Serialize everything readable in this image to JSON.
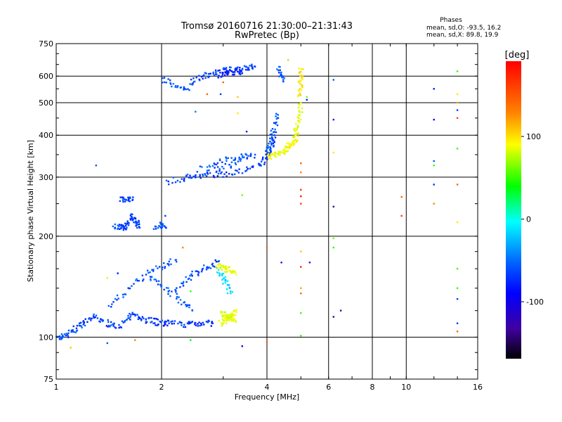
{
  "chart_data": {
    "type": "scatter",
    "title": "Tromsø 20160716 21:30:00–21:31:43",
    "subtitle": "RwPretec (Bp)",
    "xlabel": "Frequency [MHz]",
    "ylabel": "Stationary phase Virtual Height [km]",
    "x_scale": "log",
    "y_scale": "log",
    "xlim": [
      1,
      16
    ],
    "ylim": [
      75,
      750
    ],
    "grid": true,
    "x_ticks": [
      1,
      2,
      4,
      6,
      8,
      10,
      16
    ],
    "y_ticks": [
      75,
      100,
      200,
      300,
      400,
      500,
      600,
      750
    ],
    "stats": {
      "header": "Phases",
      "line_o": "mean, sd,O:  -93.5, 16.2",
      "line_x": "mean, sd,X:  89.8, 19.9"
    },
    "colorbar": {
      "label": "[deg]",
      "range": [
        -180,
        180
      ],
      "ticks": [
        100,
        0,
        -100
      ]
    },
    "traces": [
      {
        "x": [
          1.0,
          1.02,
          1.05,
          1.08,
          1.11,
          1.14,
          1.17,
          1.2
        ],
        "y": [
          99,
          100,
          101,
          102,
          104,
          106,
          108,
          110
        ],
        "phase": -105
      },
      {
        "x": [
          1.2,
          1.24,
          1.28,
          1.33,
          1.38,
          1.43,
          1.48,
          1.53,
          1.58,
          1.63
        ],
        "y": [
          110,
          112,
          115,
          113,
          111,
          109,
          108,
          109,
          112,
          115
        ],
        "phase": -108
      },
      {
        "x": [
          1.63,
          1.68,
          1.74,
          1.8,
          1.86,
          1.92,
          1.98,
          2.04,
          2.1
        ],
        "y": [
          115,
          118,
          114,
          112,
          113,
          111,
          110,
          110,
          110
        ],
        "phase": -110
      },
      {
        "x": [
          2.1,
          2.2,
          2.3,
          2.4,
          2.5,
          2.6,
          2.7,
          2.8
        ],
        "y": [
          110,
          110,
          109,
          110,
          110,
          110,
          110,
          110
        ],
        "phase": -112
      },
      {
        "x": [
          1.4,
          1.5,
          1.6,
          1.7,
          1.8,
          1.9,
          2.0,
          2.1,
          2.2
        ],
        "y": [
          123,
          130,
          138,
          147,
          152,
          158,
          162,
          166,
          170
        ],
        "phase": -102
      },
      {
        "x": [
          2.2,
          2.3,
          2.4,
          2.5,
          2.6,
          2.7,
          2.8,
          2.9
        ],
        "y": [
          140,
          145,
          150,
          155,
          158,
          162,
          165,
          168
        ],
        "phase": -106
      },
      {
        "x": [
          1.85,
          1.95,
          2.05,
          2.15,
          2.25,
          2.35,
          2.45
        ],
        "y": [
          150,
          145,
          140,
          135,
          130,
          125,
          120
        ],
        "phase": -98
      },
      {
        "x": [
          2.9,
          2.95,
          3.0,
          3.05,
          3.1,
          3.15
        ],
        "y": [
          160,
          155,
          150,
          145,
          140,
          135
        ],
        "phase": -60
      },
      {
        "x": [
          2.9,
          2.95,
          3.0,
          3.05,
          3.1,
          3.15,
          3.2,
          3.25
        ],
        "y": [
          163,
          162,
          161,
          160,
          159,
          158,
          157,
          156
        ],
        "phase": 95
      },
      {
        "x": [
          2.95,
          3.0,
          3.05,
          3.1,
          3.15,
          3.2,
          3.25
        ],
        "y": [
          110,
          111,
          112,
          114,
          116,
          118,
          120
        ],
        "phase": 98
      },
      {
        "x": [
          2.95,
          3.0,
          3.05,
          3.1,
          3.15,
          3.2,
          3.25
        ],
        "y": [
          118,
          117,
          116,
          115,
          114,
          113,
          112
        ],
        "phase": 92
      },
      {
        "x": [
          1.47,
          1.5,
          1.53,
          1.56,
          1.59
        ],
        "y": [
          212,
          213,
          214,
          213,
          212
        ],
        "phase": -105
      },
      {
        "x": [
          1.59,
          1.61,
          1.63,
          1.65,
          1.67,
          1.69,
          1.71,
          1.73
        ],
        "y": [
          216,
          220,
          225,
          229,
          226,
          221,
          216,
          212
        ],
        "phase": -108
      },
      {
        "x": [
          1.53,
          1.56,
          1.59,
          1.62,
          1.65
        ],
        "y": [
          258,
          256,
          257,
          258,
          256
        ],
        "phase": -110
      },
      {
        "x": [
          1.93,
          1.96,
          1.99,
          2.02,
          2.05
        ],
        "y": [
          212,
          216,
          214,
          218,
          213
        ],
        "phase": -105
      },
      {
        "x": [
          2.05,
          2.2,
          2.4,
          2.6,
          2.8,
          3.0,
          3.2,
          3.4,
          3.6,
          3.8,
          3.9,
          4.0,
          4.05,
          4.1,
          4.15,
          4.2
        ],
        "y": [
          290,
          295,
          300,
          302,
          305,
          306,
          308,
          312,
          318,
          326,
          333,
          342,
          352,
          365,
          382,
          400
        ],
        "phase": -110
      },
      {
        "x": [
          2.3,
          2.5,
          2.7,
          2.9,
          3.1,
          3.3,
          3.5,
          3.7
        ],
        "y": [
          300,
          305,
          310,
          318,
          325,
          333,
          340,
          350
        ],
        "phase": -105
      },
      {
        "x": [
          2.6,
          2.8,
          3.0,
          3.2,
          3.4,
          3.6
        ],
        "y": [
          320,
          330,
          336,
          342,
          348,
          352
        ],
        "phase": -100
      },
      {
        "x": [
          4.0,
          4.05,
          4.1,
          4.15,
          4.2,
          4.25,
          4.3
        ],
        "y": [
          360,
          370,
          385,
          400,
          420,
          440,
          460
        ],
        "phase": -100
      },
      {
        "x": [
          4.0,
          4.1,
          4.2,
          4.3,
          4.4,
          4.5,
          4.6,
          4.7,
          4.8,
          4.85,
          4.9,
          4.95,
          4.98,
          5.0
        ],
        "y": [
          345,
          346,
          348,
          351,
          355,
          361,
          369,
          380,
          395,
          410,
          428,
          450,
          475,
          500
        ],
        "phase": 95
      },
      {
        "x": [
          4.45,
          4.55,
          4.65,
          4.75,
          4.85,
          4.9
        ],
        "y": [
          360,
          362,
          368,
          378,
          390,
          405
        ],
        "phase": 105
      },
      {
        "x": [
          4.95,
          4.97,
          4.99,
          5.0,
          5.01,
          5.02
        ],
        "y": [
          520,
          545,
          570,
          590,
          612,
          630
        ],
        "phase": 110
      },
      {
        "x": [
          2.0,
          2.1,
          2.2,
          2.3,
          2.4
        ],
        "y": [
          590,
          575,
          560,
          550,
          545
        ],
        "phase": -100
      },
      {
        "x": [
          2.4,
          2.5,
          2.6,
          2.7,
          2.8,
          2.9,
          3.0,
          3.1,
          3.2,
          3.3,
          3.4,
          3.5,
          3.6,
          3.7
        ],
        "y": [
          575,
          585,
          595,
          605,
          612,
          618,
          622,
          625,
          628,
          630,
          632,
          635,
          638,
          640
        ],
        "phase": -108
      },
      {
        "x": [
          2.9,
          3.0,
          3.1,
          3.2,
          3.3,
          3.4
        ],
        "y": [
          600,
          610,
          615,
          618,
          615,
          612
        ],
        "phase": -120
      },
      {
        "x": [
          4.3,
          4.35,
          4.4,
          4.45
        ],
        "y": [
          640,
          620,
          600,
          585
        ],
        "phase": -100
      }
    ],
    "isolated": [
      {
        "x": 1.1,
        "y": 93,
        "phase": 120
      },
      {
        "x": 1.4,
        "y": 96,
        "phase": -100
      },
      {
        "x": 1.68,
        "y": 98,
        "phase": 140
      },
      {
        "x": 2.42,
        "y": 98,
        "phase": 20
      },
      {
        "x": 3.4,
        "y": 94,
        "phase": -130
      },
      {
        "x": 4.0,
        "y": 97,
        "phase": 150
      },
      {
        "x": 5.0,
        "y": 101,
        "phase": 40
      },
      {
        "x": 6.2,
        "y": 115,
        "phase": -150
      },
      {
        "x": 6.5,
        "y": 120,
        "phase": -150
      },
      {
        "x": 4.4,
        "y": 167,
        "phase": -140
      },
      {
        "x": 5.3,
        "y": 167,
        "phase": -140
      },
      {
        "x": 5.0,
        "y": 118,
        "phase": 40
      },
      {
        "x": 5.0,
        "y": 135,
        "phase": 150
      },
      {
        "x": 5.0,
        "y": 140,
        "phase": 130
      },
      {
        "x": 5.0,
        "y": 162,
        "phase": 170
      },
      {
        "x": 5.0,
        "y": 180,
        "phase": 120
      },
      {
        "x": 6.2,
        "y": 185,
        "phase": 40
      },
      {
        "x": 6.2,
        "y": 197,
        "phase": 60
      },
      {
        "x": 4.0,
        "y": 185,
        "phase": 150
      },
      {
        "x": 5.0,
        "y": 250,
        "phase": 160
      },
      {
        "x": 5.0,
        "y": 263,
        "phase": 175
      },
      {
        "x": 5.0,
        "y": 275,
        "phase": 165
      },
      {
        "x": 5.0,
        "y": 310,
        "phase": 140
      },
      {
        "x": 5.0,
        "y": 330,
        "phase": 150
      },
      {
        "x": 6.2,
        "y": 245,
        "phase": -150
      },
      {
        "x": 6.2,
        "y": 355,
        "phase": 110
      },
      {
        "x": 6.2,
        "y": 445,
        "phase": -120
      },
      {
        "x": 6.2,
        "y": 585,
        "phase": -100
      },
      {
        "x": 5.2,
        "y": 520,
        "phase": 60
      },
      {
        "x": 5.2,
        "y": 510,
        "phase": -120
      },
      {
        "x": 4.6,
        "y": 670,
        "phase": 70
      },
      {
        "x": 3.4,
        "y": 265,
        "phase": 60
      },
      {
        "x": 3.3,
        "y": 520,
        "phase": 120
      },
      {
        "x": 2.7,
        "y": 530,
        "phase": 150
      },
      {
        "x": 2.95,
        "y": 530,
        "phase": -110
      },
      {
        "x": 3.0,
        "y": 575,
        "phase": 150
      },
      {
        "x": 3.5,
        "y": 410,
        "phase": -120
      },
      {
        "x": 3.3,
        "y": 465,
        "phase": 110
      },
      {
        "x": 2.5,
        "y": 470,
        "phase": -90
      },
      {
        "x": 1.3,
        "y": 325,
        "phase": -100
      },
      {
        "x": 1.9,
        "y": 210,
        "phase": -100
      },
      {
        "x": 2.05,
        "y": 230,
        "phase": -110
      },
      {
        "x": 2.3,
        "y": 185,
        "phase": 140
      },
      {
        "x": 1.5,
        "y": 155,
        "phase": -120
      },
      {
        "x": 1.4,
        "y": 150,
        "phase": 90
      },
      {
        "x": 2.42,
        "y": 137,
        "phase": 40
      },
      {
        "x": 9.7,
        "y": 262,
        "phase": 150
      },
      {
        "x": 9.7,
        "y": 230,
        "phase": 160
      },
      {
        "x": 12.0,
        "y": 285,
        "phase": -110
      },
      {
        "x": 12.0,
        "y": 250,
        "phase": 140
      },
      {
        "x": 12.0,
        "y": 335,
        "phase": -100
      },
      {
        "x": 12.0,
        "y": 325,
        "phase": 40
      },
      {
        "x": 12.0,
        "y": 445,
        "phase": -130
      },
      {
        "x": 12.0,
        "y": 550,
        "phase": -120
      },
      {
        "x": 14.0,
        "y": 620,
        "phase": 40
      },
      {
        "x": 14.0,
        "y": 530,
        "phase": 110
      },
      {
        "x": 14.0,
        "y": 500,
        "phase": 130
      },
      {
        "x": 14.0,
        "y": 475,
        "phase": -110
      },
      {
        "x": 14.0,
        "y": 450,
        "phase": 160
      },
      {
        "x": 14.0,
        "y": 365,
        "phase": 40
      },
      {
        "x": 14.0,
        "y": 285,
        "phase": 150
      },
      {
        "x": 14.0,
        "y": 220,
        "phase": 110
      },
      {
        "x": 14.0,
        "y": 160,
        "phase": 40
      },
      {
        "x": 14.0,
        "y": 140,
        "phase": 40
      },
      {
        "x": 14.0,
        "y": 130,
        "phase": -110
      },
      {
        "x": 14.0,
        "y": 110,
        "phase": -110
      },
      {
        "x": 14.0,
        "y": 104,
        "phase": 150
      }
    ]
  }
}
